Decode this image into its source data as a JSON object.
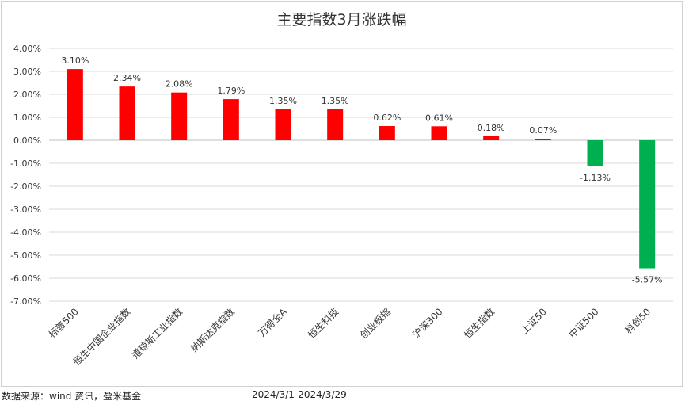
{
  "chart_data": {
    "type": "bar",
    "title": "主要指数3月涨跌幅",
    "categories": [
      "标普500",
      "恒生中国企业指数",
      "道琼斯工业指数",
      "纳斯达克指数",
      "万得全A",
      "恒生科技",
      "创业板指",
      "沪深300",
      "恒生指数",
      "上证50",
      "中证500",
      "科创50"
    ],
    "values": [
      3.1,
      2.34,
      2.08,
      1.79,
      1.35,
      1.35,
      0.62,
      0.61,
      0.18,
      0.07,
      -1.13,
      -5.57
    ],
    "data_labels": [
      "3.10%",
      "2.34%",
      "2.08%",
      "1.79%",
      "1.35%",
      "1.35%",
      "0.62%",
      "0.61%",
      "0.18%",
      "0.07%",
      "-1.13%",
      "-5.57%"
    ],
    "ylim": [
      -7.0,
      4.0
    ],
    "yticks": [
      4.0,
      3.0,
      2.0,
      1.0,
      0.0,
      -1.0,
      -2.0,
      -3.0,
      -4.0,
      -5.0,
      -6.0,
      -7.0
    ],
    "ytick_labels": [
      "4.00%",
      "3.00%",
      "2.00%",
      "1.00%",
      "0.00%",
      "-1.00%",
      "-2.00%",
      "-3.00%",
      "-4.00%",
      "-5.00%",
      "-6.00%",
      "-7.00%"
    ],
    "grid": true,
    "colors": {
      "positive": "#ff0000",
      "negative": "#00b050",
      "grid": "#d9d9d9",
      "axis": "#bfbfbf"
    }
  },
  "footer": {
    "source": "数据来源：wind 资讯，盈米基金",
    "date_range": "2024/3/1-2024/3/29"
  }
}
